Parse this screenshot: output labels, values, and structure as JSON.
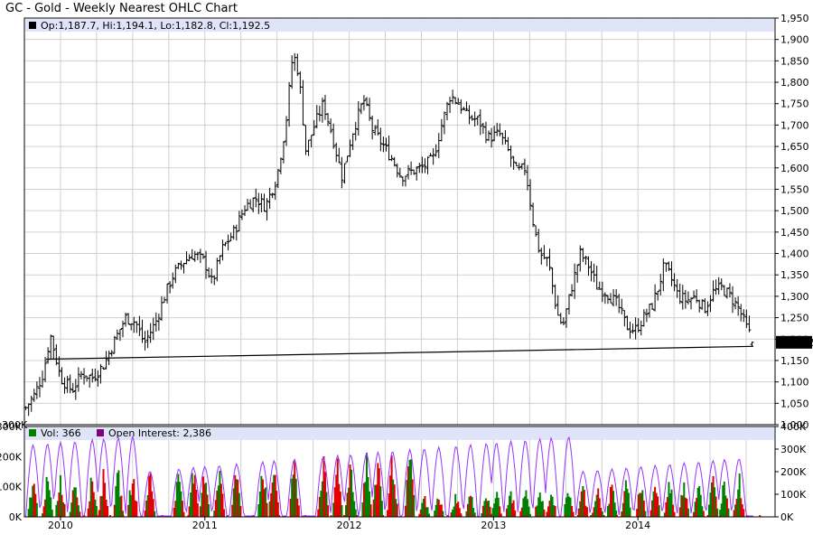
{
  "title": "GC - Gold - Weekly Nearest OHLC Chart",
  "legend": {
    "ohlc_text": "Op:1,187.7, Hi:1,194.1, Lo:1,182.8, Cl:1,192.5",
    "volume_text": "Vol: 366",
    "oi_text": "Open Interest: 2,386"
  },
  "last_price_label": "1,192.5",
  "volume_left_axis_top": "300K",
  "colors": {
    "bar": "#000000",
    "grid": "#d0d0d0",
    "legend_bg": "#e0e4f8",
    "vol_up": "#008000",
    "vol_down": "#e00000",
    "oi_line": "#9933ff",
    "oi_square": "#800080",
    "ohlc_square": "#000000"
  },
  "chart_data": [
    {
      "type": "ohlc",
      "title": "GC - Gold - Weekly Nearest OHLC Chart",
      "xlabel": "",
      "ylabel": "",
      "x_ticks": [
        "2010",
        "2011",
        "2012",
        "2013",
        "2014"
      ],
      "y_ticks": [
        "1,950",
        "1,900",
        "1,850",
        "1,800",
        "1,750",
        "1,700",
        "1,650",
        "1,600",
        "1,550",
        "1,500",
        "1,450",
        "1,400",
        "1,350",
        "1,300",
        "1,250",
        "1,200",
        "1,150",
        "1,100",
        "1,050",
        "1,000"
      ],
      "ylim": [
        1000,
        1950
      ],
      "xlim": [
        2009.75,
        2014.95
      ],
      "grid": true,
      "series_anchors": [
        {
          "t": 2009.76,
          "c": 1040
        },
        {
          "t": 2009.82,
          "c": 1070
        },
        {
          "t": 2009.88,
          "c": 1120
        },
        {
          "t": 2009.93,
          "c": 1210
        },
        {
          "t": 2010.0,
          "c": 1110
        },
        {
          "t": 2010.08,
          "c": 1080
        },
        {
          "t": 2010.15,
          "c": 1120
        },
        {
          "t": 2010.22,
          "c": 1110
        },
        {
          "t": 2010.3,
          "c": 1140
        },
        {
          "t": 2010.38,
          "c": 1200
        },
        {
          "t": 2010.45,
          "c": 1250
        },
        {
          "t": 2010.52,
          "c": 1240
        },
        {
          "t": 2010.58,
          "c": 1190
        },
        {
          "t": 2010.66,
          "c": 1240
        },
        {
          "t": 2010.72,
          "c": 1300
        },
        {
          "t": 2010.78,
          "c": 1350
        },
        {
          "t": 2010.85,
          "c": 1380
        },
        {
          "t": 2010.92,
          "c": 1400
        },
        {
          "t": 2011.0,
          "c": 1380
        },
        {
          "t": 2011.05,
          "c": 1330
        },
        {
          "t": 2011.12,
          "c": 1410
        },
        {
          "t": 2011.2,
          "c": 1450
        },
        {
          "t": 2011.28,
          "c": 1510
        },
        {
          "t": 2011.35,
          "c": 1530
        },
        {
          "t": 2011.42,
          "c": 1510
        },
        {
          "t": 2011.5,
          "c": 1580
        },
        {
          "t": 2011.56,
          "c": 1700
        },
        {
          "t": 2011.61,
          "c": 1870
        },
        {
          "t": 2011.65,
          "c": 1820
        },
        {
          "t": 2011.7,
          "c": 1640
        },
        {
          "t": 2011.76,
          "c": 1700
        },
        {
          "t": 2011.82,
          "c": 1750
        },
        {
          "t": 2011.88,
          "c": 1680
        },
        {
          "t": 2011.95,
          "c": 1580
        },
        {
          "t": 2012.02,
          "c": 1680
        },
        {
          "t": 2012.1,
          "c": 1760
        },
        {
          "t": 2012.16,
          "c": 1690
        },
        {
          "t": 2012.24,
          "c": 1650
        },
        {
          "t": 2012.3,
          "c": 1620
        },
        {
          "t": 2012.36,
          "c": 1580
        },
        {
          "t": 2012.42,
          "c": 1590
        },
        {
          "t": 2012.5,
          "c": 1600
        },
        {
          "t": 2012.58,
          "c": 1620
        },
        {
          "t": 2012.64,
          "c": 1700
        },
        {
          "t": 2012.7,
          "c": 1770
        },
        {
          "t": 2012.76,
          "c": 1750
        },
        {
          "t": 2012.82,
          "c": 1720
        },
        {
          "t": 2012.9,
          "c": 1710
        },
        {
          "t": 2012.96,
          "c": 1670
        },
        {
          "t": 2013.04,
          "c": 1680
        },
        {
          "t": 2013.1,
          "c": 1640
        },
        {
          "t": 2013.16,
          "c": 1590
        },
        {
          "t": 2013.22,
          "c": 1600
        },
        {
          "t": 2013.28,
          "c": 1460
        },
        {
          "t": 2013.32,
          "c": 1400
        },
        {
          "t": 2013.38,
          "c": 1380
        },
        {
          "t": 2013.44,
          "c": 1260
        },
        {
          "t": 2013.48,
          "c": 1230
        },
        {
          "t": 2013.54,
          "c": 1320
        },
        {
          "t": 2013.6,
          "c": 1400
        },
        {
          "t": 2013.66,
          "c": 1370
        },
        {
          "t": 2013.72,
          "c": 1320
        },
        {
          "t": 2013.78,
          "c": 1310
        },
        {
          "t": 2013.86,
          "c": 1280
        },
        {
          "t": 2013.92,
          "c": 1230
        },
        {
          "t": 2013.98,
          "c": 1220
        },
        {
          "t": 2014.04,
          "c": 1250
        },
        {
          "t": 2014.1,
          "c": 1280
        },
        {
          "t": 2014.14,
          "c": 1320
        },
        {
          "t": 2014.18,
          "c": 1370
        },
        {
          "t": 2014.22,
          "c": 1350
        },
        {
          "t": 2014.28,
          "c": 1300
        },
        {
          "t": 2014.34,
          "c": 1290
        },
        {
          "t": 2014.4,
          "c": 1300
        },
        {
          "t": 2014.46,
          "c": 1270
        },
        {
          "t": 2014.52,
          "c": 1310
        },
        {
          "t": 2014.58,
          "c": 1320
        },
        {
          "t": 2014.64,
          "c": 1300
        },
        {
          "t": 2014.7,
          "c": 1270
        },
        {
          "t": 2014.76,
          "c": 1220
        },
        {
          "t": 2014.8,
          "c": 1195
        }
      ],
      "bar_interval_years": 0.0192,
      "last_bar": {
        "open": 1187.7,
        "high": 1194.1,
        "low": 1182.8,
        "close": 1192.5
      },
      "trendline": {
        "start": {
          "t": 2009.9,
          "v": 1153
        },
        "end": {
          "t": 2014.8,
          "v": 1183
        }
      }
    },
    {
      "type": "bar",
      "title": "",
      "series": [
        {
          "name": "Vol: 366",
          "color": "#008000"
        },
        {
          "name": "Open Interest: 2,386",
          "color": "#9933ff"
        }
      ],
      "left_y_ticks": [
        "0K",
        "100K",
        "200K",
        "300K"
      ],
      "right_y_ticks": [
        "0K",
        "100K",
        "200K",
        "300K",
        "400K"
      ],
      "ylim_volume": [
        0,
        300000
      ],
      "ylim_open_interest": [
        0,
        400000
      ],
      "contract_roll_peaks": [
        2009.81,
        2009.91,
        2010.0,
        2010.1,
        2010.22,
        2010.3,
        2010.4,
        2010.5,
        2010.62,
        2010.82,
        2010.92,
        2011.0,
        2011.1,
        2011.22,
        2011.4,
        2011.48,
        2011.62,
        2011.82,
        2011.92,
        2012.01,
        2012.12,
        2012.2,
        2012.3,
        2012.42,
        2012.52,
        2012.62,
        2012.74,
        2012.84,
        2012.95,
        2013.02,
        2013.12,
        2013.22,
        2013.32,
        2013.4,
        2013.52,
        2013.62,
        2013.72,
        2013.82,
        2013.92,
        2014.02,
        2014.12,
        2014.22,
        2014.32,
        2014.42,
        2014.52,
        2014.6,
        2014.7
      ]
    }
  ]
}
